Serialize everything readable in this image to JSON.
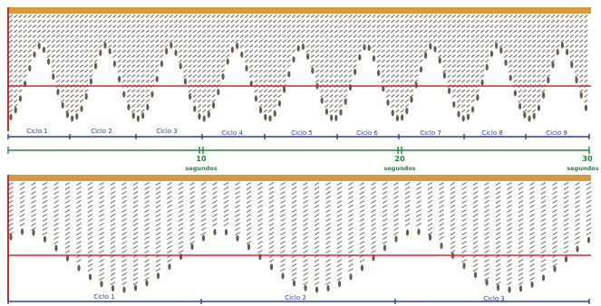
{
  "colors": {
    "bar": "#d89a3c",
    "axis": "#d22a2a",
    "cycle": "#2a3f9b",
    "time": "#1f8a3a",
    "chain": "#5d5750",
    "head": "#6b5a45"
  },
  "top_panel": {
    "cycles": [
      "Ciclo 1",
      "Ciclo 2",
      "Ciclo 3",
      "Ciclo 4",
      "Ciclo 5",
      "Ciclo 6",
      "Ciclo 7",
      "Ciclo 8",
      "Ciclo 9"
    ],
    "time_marks": [
      {
        "value": "10",
        "unit": "segundos"
      },
      {
        "value": "20",
        "unit": "segundos"
      },
      {
        "value": "30",
        "unit": "segundos"
      }
    ]
  },
  "bottom_panel": {
    "cycles": [
      "Ciclo 1",
      "Ciclo 2",
      "Ciclo 3"
    ]
  }
}
